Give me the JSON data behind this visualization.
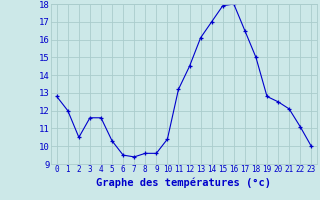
{
  "hours": [
    0,
    1,
    2,
    3,
    4,
    5,
    6,
    7,
    8,
    9,
    10,
    11,
    12,
    13,
    14,
    15,
    16,
    17,
    18,
    19,
    20,
    21,
    22,
    23
  ],
  "temps": [
    12.8,
    12.0,
    10.5,
    11.6,
    11.6,
    10.3,
    9.5,
    9.4,
    9.6,
    9.6,
    10.4,
    13.2,
    14.5,
    16.1,
    17.0,
    17.9,
    18.0,
    16.5,
    15.0,
    12.8,
    12.5,
    12.1,
    11.1,
    10.0
  ],
  "ylim": [
    9,
    18
  ],
  "yticks": [
    9,
    10,
    11,
    12,
    13,
    14,
    15,
    16,
    17,
    18
  ],
  "xticks": [
    0,
    1,
    2,
    3,
    4,
    5,
    6,
    7,
    8,
    9,
    10,
    11,
    12,
    13,
    14,
    15,
    16,
    17,
    18,
    19,
    20,
    21,
    22,
    23
  ],
  "xlabel": "Graphe des températures (°c)",
  "line_color": "#0000cc",
  "marker": "+",
  "bg_color": "#cce8e8",
  "grid_color": "#aacccc",
  "axis_label_color": "#0000cc",
  "tick_color": "#0000cc",
  "xlabel_fontsize": 7.5,
  "ytick_fontsize": 6.5,
  "xtick_fontsize": 5.5,
  "xlabel_bold": true
}
